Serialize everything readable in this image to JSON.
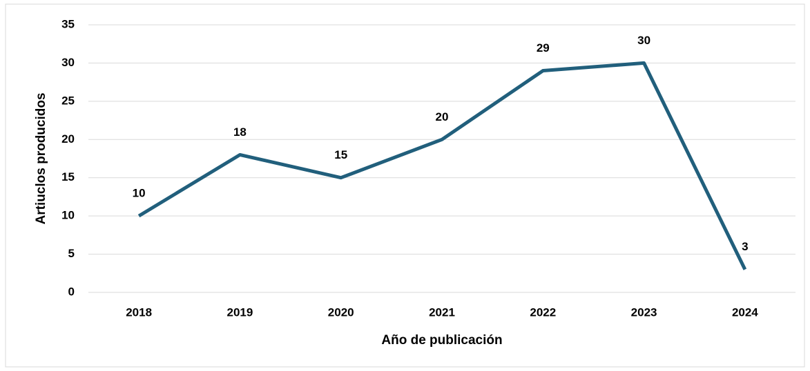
{
  "chart_data": {
    "type": "line",
    "x_label": "Año de publicación",
    "y_label": "Artiuclos producidos",
    "categories": [
      "2018",
      "2019",
      "2020",
      "2021",
      "2022",
      "2023",
      "2024"
    ],
    "series": [
      {
        "name": "Artiuclos producidos",
        "color": "#215f7c",
        "values": [
          10,
          18,
          15,
          20,
          29,
          30,
          3
        ]
      }
    ],
    "ylim": [
      0,
      35
    ],
    "yticks": [
      0,
      5,
      10,
      15,
      20,
      25,
      30,
      35
    ],
    "grid": true
  }
}
